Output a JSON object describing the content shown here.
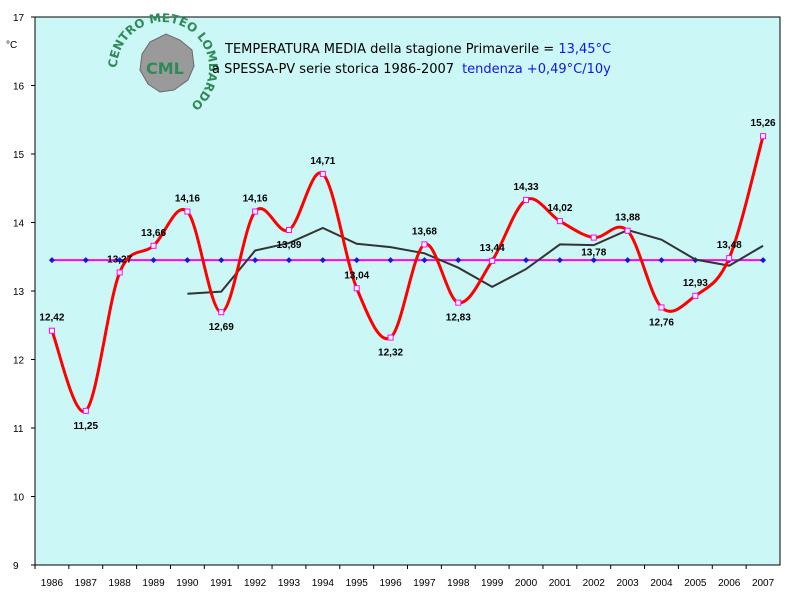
{
  "title": {
    "line1_prefix": "TEMPERATURA MEDIA della stagione Primaverile = ",
    "line1_value": "13,45°C",
    "line2_prefix": "a SPESSA-PV serie storica 1986-2007",
    "line2_trend": "tendenza +0,49°C/10y"
  },
  "logo": {
    "ring_text": "CENTRO METEO LOMBARDO",
    "center_text": "CML"
  },
  "colors": {
    "plot_bg": "#ccf7f7",
    "series_main": "#ff0000",
    "series_marker": "#ff00ff",
    "series_mean": "#ff00ff",
    "series_moving_avg": "#333333",
    "highlight_text": "#1515e6",
    "logo_green": "#2e8b57"
  },
  "chart_data": {
    "type": "line",
    "yunit": "°C",
    "ylim": [
      9,
      17
    ],
    "yticks": [
      "9",
      "10",
      "11",
      "12",
      "13",
      "14",
      "15",
      "16",
      "17"
    ],
    "grid": false,
    "categories": [
      "1986",
      "1987",
      "1988",
      "1989",
      "1990",
      "1991",
      "1992",
      "1993",
      "1994",
      "1995",
      "1996",
      "1997",
      "1998",
      "1999",
      "2000",
      "2001",
      "2002",
      "2003",
      "2004",
      "2005",
      "2006",
      "2007"
    ],
    "series": [
      {
        "values": [
          12.42,
          11.25,
          13.27,
          13.66,
          14.16,
          12.69,
          14.16,
          13.89,
          14.71,
          13.04,
          12.32,
          13.68,
          12.83,
          13.44,
          14.33,
          14.02,
          13.78,
          13.88,
          12.76,
          12.93,
          13.48,
          15.26
        ],
        "labels": [
          "12,42",
          "11,25",
          "13,27",
          "13,66",
          "14,16",
          "12,69",
          "14,16",
          "13,89",
          "14,71",
          "13,04",
          "12,32",
          "13,68",
          "12,83",
          "13,44",
          "14,33",
          "14,02",
          "13,78",
          "13,88",
          "12,76",
          "12,93",
          "13,48",
          "15,26"
        ]
      },
      {
        "values": [
          13.45,
          13.45,
          13.45,
          13.45,
          13.45,
          13.45,
          13.45,
          13.45,
          13.45,
          13.45,
          13.45,
          13.45,
          13.45,
          13.45,
          13.45,
          13.45,
          13.45,
          13.45,
          13.45,
          13.45,
          13.45,
          13.45
        ]
      },
      {
        "values": [
          null,
          null,
          null,
          null,
          12.96,
          12.99,
          13.59,
          13.7,
          13.92,
          13.69,
          13.64,
          13.55,
          13.34,
          13.06,
          13.32,
          13.68,
          13.67,
          13.89,
          13.75,
          13.46,
          13.37,
          13.66
        ]
      }
    ]
  }
}
